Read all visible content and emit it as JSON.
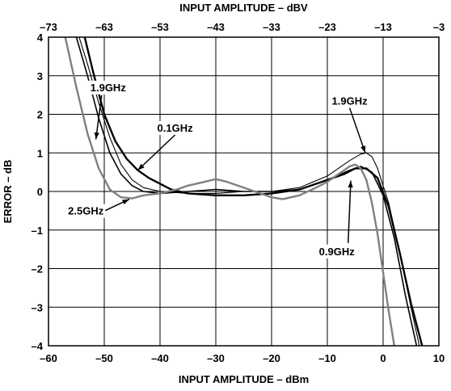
{
  "chart_data": {
    "type": "line",
    "title": "",
    "xlabel": "INPUT AMPLITUDE – dBm",
    "x2label": "INPUT AMPLITUDE – dBV",
    "ylabel": "ERROR – dB",
    "xlim": [
      -60,
      10
    ],
    "x2lim": [
      -73,
      -3
    ],
    "ylim": [
      -4,
      4
    ],
    "grid": true,
    "x_ticks": [
      "–60",
      "–50",
      "–40",
      "–30",
      "–20",
      "–10",
      "0",
      "10"
    ],
    "x_tick_values": [
      -60,
      -50,
      -40,
      -30,
      -20,
      -10,
      0,
      10
    ],
    "x2_ticks": [
      "–73",
      "–63",
      "–53",
      "–43",
      "–33",
      "–23",
      "–13",
      "–3"
    ],
    "x2_tick_values": [
      -73,
      -63,
      -53,
      -43,
      -33,
      -23,
      -13,
      -3
    ],
    "y_ticks": [
      "4",
      "3",
      "2",
      "1",
      "0",
      "–1",
      "–2",
      "–3",
      "–4"
    ],
    "y_tick_values": [
      4,
      3,
      2,
      1,
      0,
      -1,
      -2,
      -3,
      -4
    ],
    "series": [
      {
        "name": "0.1GHz",
        "color": "#000000",
        "x": [
          -53.5,
          -52,
          -50,
          -48,
          -46,
          -44,
          -42,
          -40,
          -38,
          -35,
          -30,
          -25,
          -20,
          -15,
          -10,
          -7,
          -5,
          -3,
          -1,
          1,
          3,
          5,
          7
        ],
        "y": [
          4.0,
          3.1,
          2.0,
          1.3,
          0.85,
          0.55,
          0.35,
          0.2,
          0.05,
          -0.05,
          -0.1,
          -0.1,
          -0.05,
          0.05,
          0.3,
          0.45,
          0.6,
          0.6,
          0.35,
          -0.4,
          -1.6,
          -2.9,
          -4.0
        ]
      },
      {
        "name": "0.9GHz",
        "color": "#000000",
        "x": [
          -55,
          -53,
          -51,
          -49,
          -47,
          -45,
          -43,
          -40,
          -35,
          -30,
          -25,
          -20,
          -15,
          -10,
          -6,
          -4,
          -2,
          0,
          2,
          4,
          6
        ],
        "y": [
          4.0,
          3.0,
          1.9,
          1.0,
          0.45,
          0.15,
          0.0,
          -0.05,
          0.0,
          0.05,
          0.0,
          0.0,
          0.05,
          0.3,
          0.55,
          0.65,
          0.5,
          -0.1,
          -1.2,
          -2.7,
          -4.0
        ]
      },
      {
        "name": "1.9GHz",
        "color": "#000000",
        "x": [
          -54.5,
          -53,
          -51,
          -49,
          -47,
          -45,
          -43,
          -40,
          -35,
          -30,
          -25,
          -20,
          -15,
          -10,
          -6,
          -4,
          -3,
          -2,
          -1,
          1,
          3,
          5,
          6.5
        ],
        "y": [
          4.0,
          3.3,
          2.3,
          1.4,
          0.7,
          0.3,
          0.1,
          0.0,
          -0.05,
          -0.05,
          0.0,
          0.0,
          0.1,
          0.4,
          0.8,
          0.97,
          1.0,
          0.9,
          0.6,
          -0.3,
          -1.6,
          -3.0,
          -4.0
        ]
      },
      {
        "name": "2.5GHz",
        "color": "#808080",
        "x": [
          -57,
          -55,
          -53,
          -51,
          -49,
          -47,
          -45,
          -43,
          -40,
          -37,
          -35,
          -32,
          -30,
          -28,
          -25,
          -22,
          -20,
          -18,
          -15,
          -12,
          -10,
          -8,
          -6,
          -5,
          -4,
          -3,
          -2,
          -1,
          0,
          1,
          2
        ],
        "y": [
          4.0,
          2.7,
          1.5,
          0.6,
          0.05,
          -0.15,
          -0.18,
          -0.1,
          -0.05,
          0.05,
          0.15,
          0.25,
          0.32,
          0.25,
          0.1,
          -0.05,
          -0.15,
          -0.2,
          -0.1,
          0.1,
          0.25,
          0.45,
          0.65,
          0.7,
          0.6,
          0.3,
          -0.3,
          -1.1,
          -2.1,
          -3.1,
          -4.0
        ]
      }
    ],
    "annotations": [
      {
        "text": "1.9GHz",
        "x": -52.5,
        "y": 2.6,
        "arrow_to": [
          -51.5,
          1.35
        ]
      },
      {
        "text": "0.1GHz",
        "x": -40.5,
        "y": 1.55,
        "arrow_to": [
          -44,
          0.55
        ]
      },
      {
        "text": "1.9GHz",
        "x": -9.2,
        "y": 2.25,
        "arrow_to": [
          -3.2,
          1.0
        ]
      },
      {
        "text": "2.5GHz",
        "x": -56.5,
        "y": -0.6,
        "arrow_to": [
          -45.5,
          -0.2
        ]
      },
      {
        "text": "0.9GHz",
        "x": -11.5,
        "y": -1.65,
        "arrow_to": [
          -5.8,
          0.28
        ]
      }
    ]
  }
}
